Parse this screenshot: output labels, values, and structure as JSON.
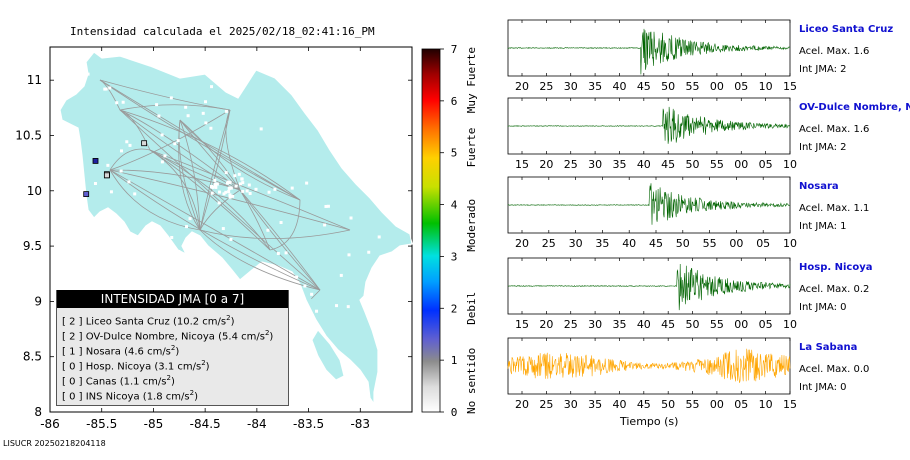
{
  "map": {
    "title": "Intensidad calculada el 2025/02/18_02:41:16_PM",
    "x_ticks": [
      "-86",
      "-85.5",
      "-85",
      "-84.5",
      "-84",
      "-83.5",
      "-83"
    ],
    "y_ticks": [
      "11",
      "10.5",
      "10",
      "9.5",
      "9",
      "8.5",
      "8"
    ],
    "land_color": "#b4ecec",
    "footer": "LISUCR 20250218204118",
    "legend": {
      "header": "INTENSIDAD JMA [0 a 7]",
      "rows": [
        {
          "level": "[ 2 ]",
          "name": "Liceo Santa Cruz",
          "value": "(10.2 cm/s",
          "sup": "2",
          "close": ")"
        },
        {
          "level": "[ 2 ]",
          "name": "OV-Dulce Nombre, Nicoya",
          "value": "(5.4 cm/s",
          "sup": "2",
          "close": ")"
        },
        {
          "level": "[ 1 ]",
          "name": "Nosara",
          "value": "(4.6 cm/s",
          "sup": "2",
          "close": ")"
        },
        {
          "level": "[ 0 ]",
          "name": "Hosp. Nicoya",
          "value": "(3.1 cm/s",
          "sup": "2",
          "close": ")"
        },
        {
          "level": "[ 0 ]",
          "name": "Canas",
          "value": "(1.1 cm/s",
          "sup": "2",
          "close": ")"
        },
        {
          "level": "[ 0 ]",
          "name": "INS Nicoya",
          "value": "(1.8 cm/s",
          "sup": "2",
          "close": ")"
        }
      ]
    }
  },
  "colorbar": {
    "ticks": [
      "0",
      "1",
      "2",
      "3",
      "4",
      "5",
      "6",
      "7"
    ],
    "labels": [
      "No sentido",
      "Debil",
      "Moderado",
      "Fuerte",
      "Muy Fuerte"
    ]
  },
  "seismograms": {
    "x_title": "Tiempo (s)",
    "panels": [
      {
        "name": "Liceo Santa Cruz",
        "acel": "Acel. Max. 1.6",
        "jma": "Int JMA: 2",
        "color": "#006400",
        "ticks": [
          "20",
          "25",
          "30",
          "35",
          "40",
          "45",
          "50",
          "55",
          "00",
          "05",
          "10",
          "15"
        ],
        "onset": 0.47,
        "amp": 1.0
      },
      {
        "name": "OV-Dulce Nombre, Nicoya",
        "acel": "Acel. Max. 1.6",
        "jma": "Int JMA: 2",
        "color": "#006400",
        "ticks": [
          "15",
          "20",
          "25",
          "30",
          "35",
          "40",
          "45",
          "50",
          "55",
          "00",
          "05",
          "10"
        ],
        "onset": 0.55,
        "amp": 0.9
      },
      {
        "name": "Nosara",
        "acel": "Acel. Max. 1.1",
        "jma": "Int JMA: 1",
        "color": "#006400",
        "ticks": [
          "20",
          "25",
          "30",
          "35",
          "40",
          "45",
          "50",
          "55",
          "00",
          "05",
          "10"
        ],
        "onset": 0.5,
        "amp": 0.9
      },
      {
        "name": "Hosp. Nicoya",
        "acel": "Acel. Max. 0.2",
        "jma": "Int JMA: 0",
        "color": "#006400",
        "ticks": [
          "15",
          "20",
          "25",
          "30",
          "35",
          "40",
          "45",
          "50",
          "55",
          "00",
          "05",
          "10"
        ],
        "onset": 0.6,
        "amp": 1.0
      },
      {
        "name": "La Sabana",
        "acel": "Acel. Max. 0.0",
        "jma": "Int JMA: 0",
        "color": "#ffa500",
        "ticks": [
          "20",
          "25",
          "30",
          "35",
          "40",
          "45",
          "50",
          "55",
          "00",
          "05",
          "10",
          "15"
        ],
        "onset": 0.0,
        "amp": 0.7
      }
    ]
  },
  "chart_data": [
    {
      "type": "map",
      "title": "Intensidad calculada el 2025/02/18_02:41:16_PM",
      "xlim": [
        -86,
        -82.5
      ],
      "ylim": [
        8,
        11.3
      ],
      "stations": [
        {
          "lon": -85.56,
          "lat": 10.27,
          "level": 2
        },
        {
          "lon": -85.45,
          "lat": 10.14,
          "level": 2
        },
        {
          "lon": -85.65,
          "lat": 9.97,
          "level": 1
        },
        {
          "lon": -85.45,
          "lat": 10.15,
          "level": 0
        },
        {
          "lon": -85.09,
          "lat": 10.43,
          "level": 0
        },
        {
          "lon": -85.45,
          "lat": 10.14,
          "level": 0
        }
      ]
    },
    {
      "type": "colorbar",
      "range": [
        0,
        7
      ]
    }
  ]
}
